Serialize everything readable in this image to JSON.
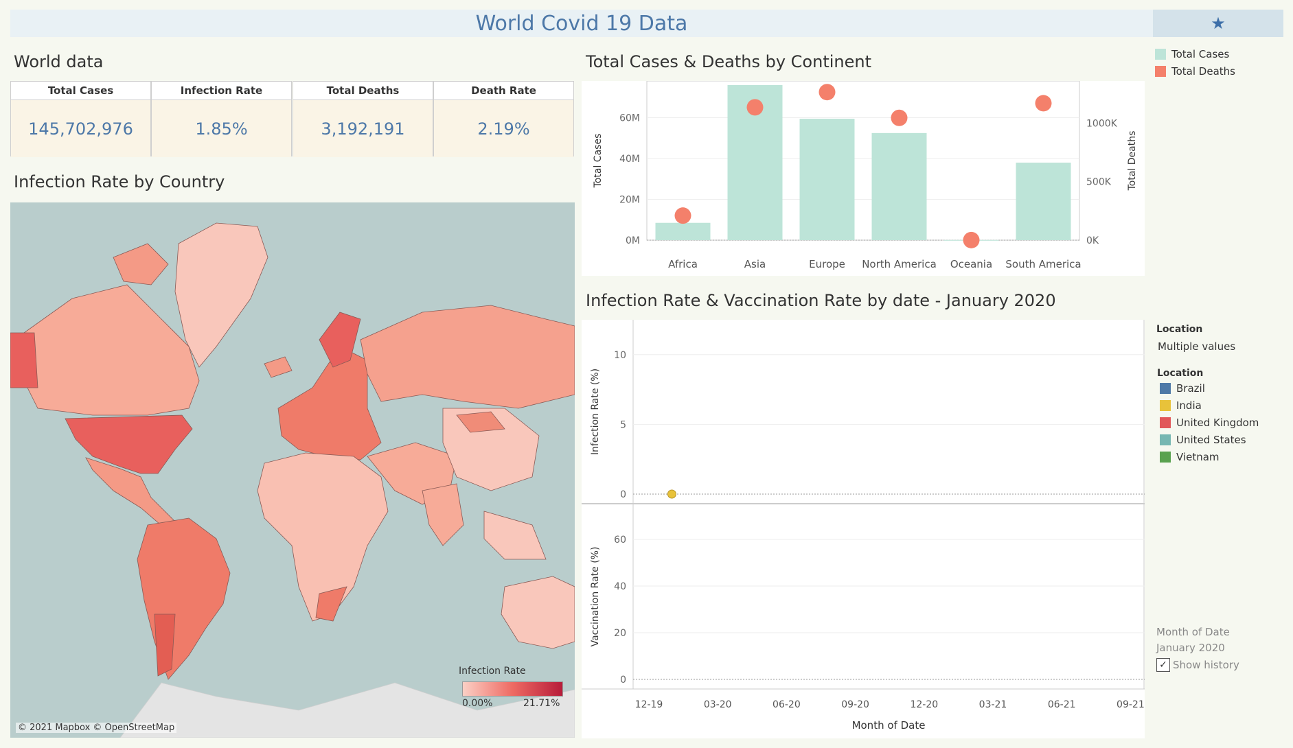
{
  "dashboard": {
    "title": "World Covid 19 Data",
    "star": "★"
  },
  "world": {
    "title": "World data",
    "kpis": [
      {
        "label": "Total Cases",
        "value": "145,702,976"
      },
      {
        "label": "Infection Rate",
        "value": "1.85%"
      },
      {
        "label": "Total Deaths",
        "value": "3,192,191"
      },
      {
        "label": "Death Rate",
        "value": "2.19%"
      }
    ]
  },
  "map": {
    "title": "Infection Rate by Country",
    "legend_title": "Infection Rate",
    "legend_min": "0.00%",
    "legend_max": "21.71%",
    "attribution": "© 2021 Mapbox © OpenStreetMap"
  },
  "legend_cases": {
    "items": [
      {
        "label": "Total Cases",
        "color": "#bde4d8"
      },
      {
        "label": "Total Deaths",
        "color": "#f4806b"
      }
    ]
  },
  "chart_data": [
    {
      "type": "bar",
      "title": "Total Cases & Deaths by Continent",
      "categories": [
        "Africa",
        "Asia",
        "Europe",
        "North America",
        "Oceania",
        "South America"
      ],
      "series": [
        {
          "name": "Total Cases",
          "axis": "left",
          "values": [
            8500000,
            76000000,
            59500000,
            52500000,
            80000,
            38000000
          ]
        },
        {
          "name": "Total Deaths",
          "axis": "right",
          "mark": "circle",
          "values": [
            210000,
            1135000,
            1265000,
            1045000,
            1000,
            1170000
          ]
        }
      ],
      "ylabel": "Total Cases",
      "ylabel_right": "Total Deaths",
      "ylim": [
        0,
        78000000
      ],
      "ylim_right": [
        0,
        1360000
      ],
      "yticks": [
        "0M",
        "20M",
        "40M",
        "60M"
      ],
      "yticks_right": [
        "0K",
        "500K",
        "1000K"
      ],
      "grid": true
    },
    {
      "type": "line",
      "title": "Infection Rate & Vaccination Rate by date - January 2020",
      "xlabel": "Month of Date",
      "xticks": [
        "12-19",
        "03-20",
        "06-20",
        "09-20",
        "12-20",
        "03-21",
        "06-21",
        "09-21"
      ],
      "panels": [
        {
          "ylabel": "Infection Rate (%)",
          "ylim": [
            0,
            12.5
          ],
          "yticks": [
            "0",
            "5",
            "10"
          ]
        },
        {
          "ylabel": "Vaccination Rate (%)",
          "ylim": [
            0,
            75
          ],
          "yticks": [
            "0",
            "20",
            "40",
            "60"
          ]
        }
      ],
      "series": [
        {
          "name": "India",
          "color": "#e8c23a",
          "panel": 0,
          "points": [
            {
              "x": "01-20",
              "y": 0
            }
          ]
        }
      ]
    }
  ],
  "location_filter": {
    "title": "Location",
    "value": "Multiple values"
  },
  "location_legend": {
    "title": "Location",
    "items": [
      {
        "label": "Brazil",
        "color": "#4e79a7"
      },
      {
        "label": "India",
        "color": "#e8c23a"
      },
      {
        "label": "United Kingdom",
        "color": "#e15759"
      },
      {
        "label": "United States",
        "color": "#76b7b2"
      },
      {
        "label": "Vietnam",
        "color": "#59a14f"
      }
    ]
  },
  "date_control": {
    "label": "Month of Date",
    "value": "January 2020",
    "checkbox_label": "Show history",
    "checked": true
  }
}
